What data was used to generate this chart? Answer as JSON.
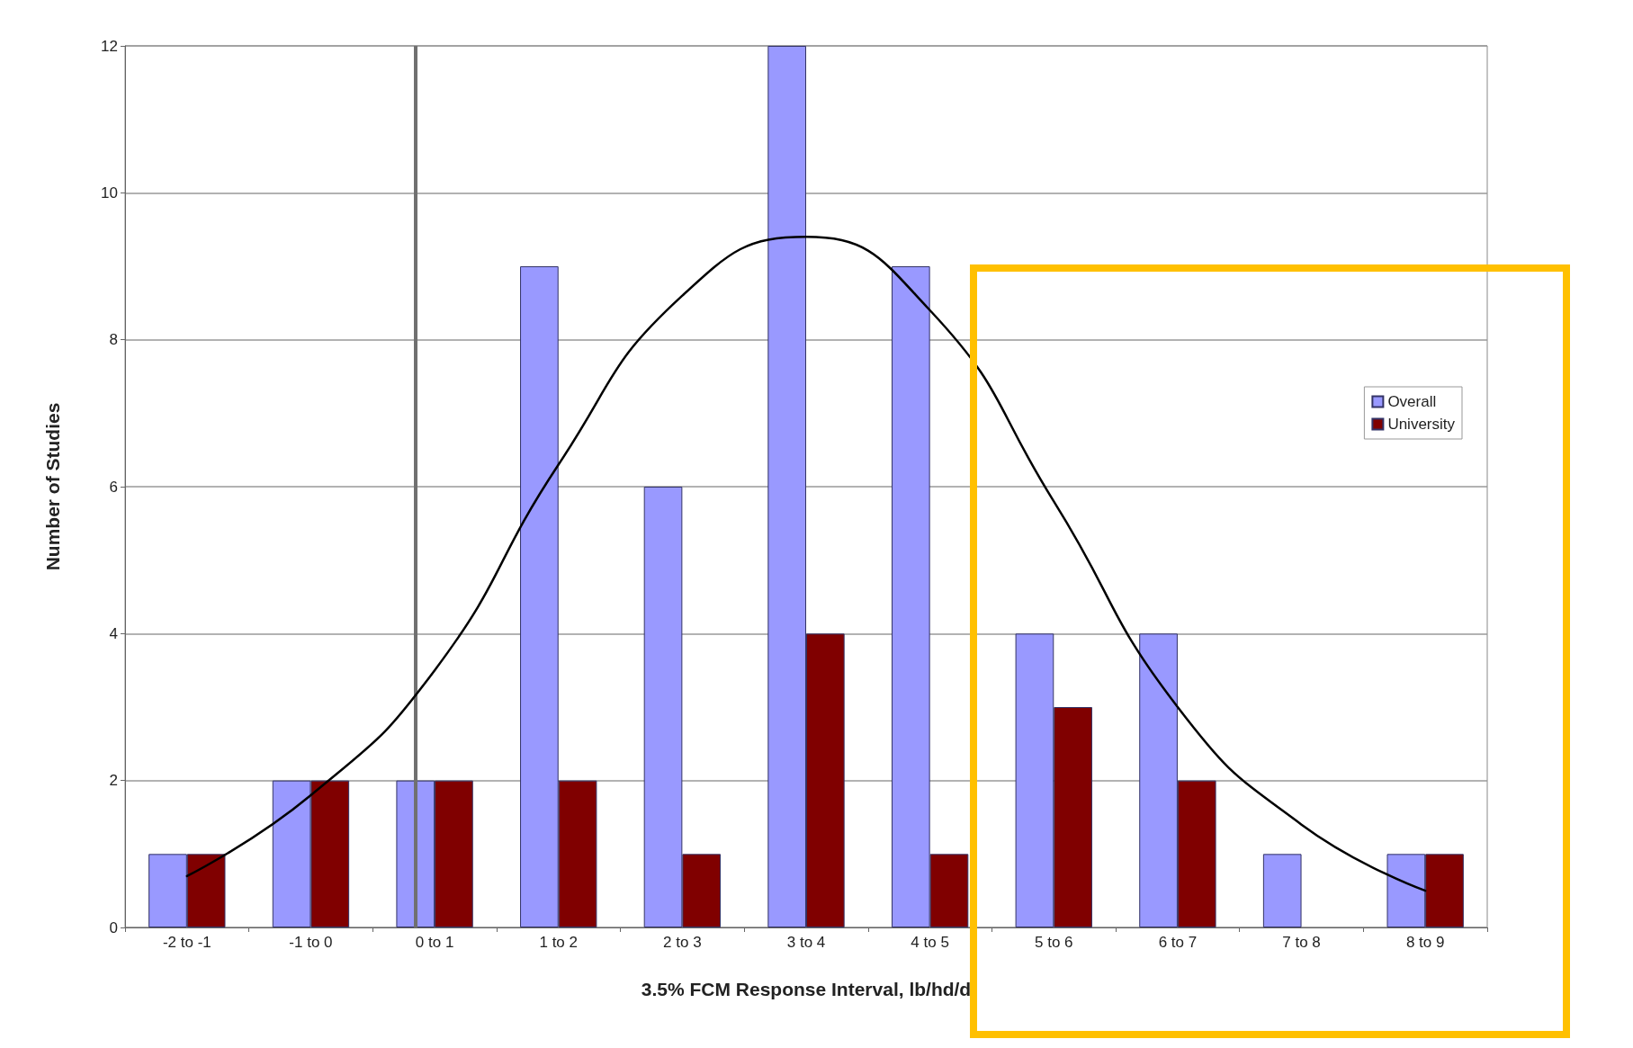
{
  "chart_data": {
    "type": "bar",
    "xlabel": "3.5% FCM Response Interval, lb/hd/d",
    "ylabel": "Number of Studies",
    "categories": [
      "-2 to -1",
      "-1 to 0",
      "0 to 1",
      "1 to 2",
      "2 to 3",
      "3 to 4",
      "4 to 5",
      "5 to 6",
      "6 to 7",
      "7 to 8",
      "8 to 9"
    ],
    "series": [
      {
        "name": "Overall",
        "color": "#9999ff",
        "values": [
          1,
          2,
          2,
          9,
          6,
          12,
          9,
          4,
          4,
          1,
          1
        ]
      },
      {
        "name": "University",
        "color": "#800000",
        "values": [
          1,
          2,
          2,
          2,
          1,
          4,
          1,
          3,
          2,
          null,
          1
        ]
      },
      {
        "type": "line",
        "color": "#000000",
        "values": [
          0.7,
          1.8,
          3.5,
          6.3,
          8.6,
          9.4,
          8.4,
          5.8,
          3.0,
          1.4,
          0.5
        ]
      }
    ],
    "ylim": [
      0,
      12
    ],
    "yticks": [
      0,
      2,
      4,
      6,
      8,
      10,
      12
    ],
    "grid": "y",
    "legend": "right",
    "marker": "none",
    "ref_lines": [
      {
        "axis": "x",
        "value": "0 to 1",
        "color": "#707070"
      }
    ]
  }
}
